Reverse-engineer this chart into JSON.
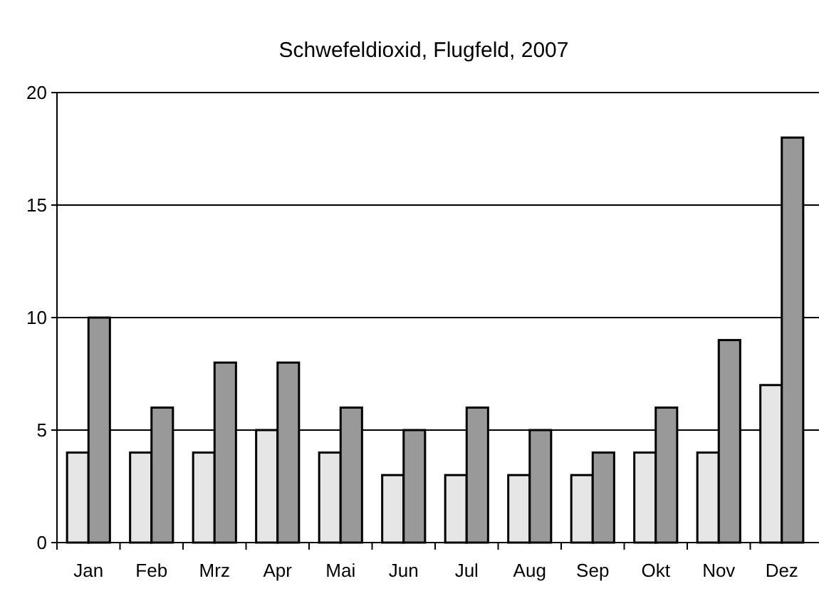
{
  "chart_data": {
    "type": "bar",
    "title": "Schwefeldioxid, Flugfeld, 2007",
    "categories": [
      "Jan",
      "Feb",
      "Mrz",
      "Apr",
      "Mai",
      "Jun",
      "Jul",
      "Aug",
      "Sep",
      "Okt",
      "Nov",
      "Dez"
    ],
    "series": [
      {
        "color": "#e6e6e6",
        "values": [
          4,
          4,
          4,
          5,
          4,
          3,
          3,
          3,
          3,
          4,
          4,
          7
        ]
      },
      {
        "color": "#999999",
        "values": [
          10,
          6,
          8,
          8,
          6,
          5,
          6,
          5,
          4,
          6,
          9,
          18
        ]
      }
    ],
    "ylim": [
      0,
      20
    ],
    "yticks": [
      0,
      5,
      10,
      15,
      20
    ],
    "grid": "y"
  }
}
